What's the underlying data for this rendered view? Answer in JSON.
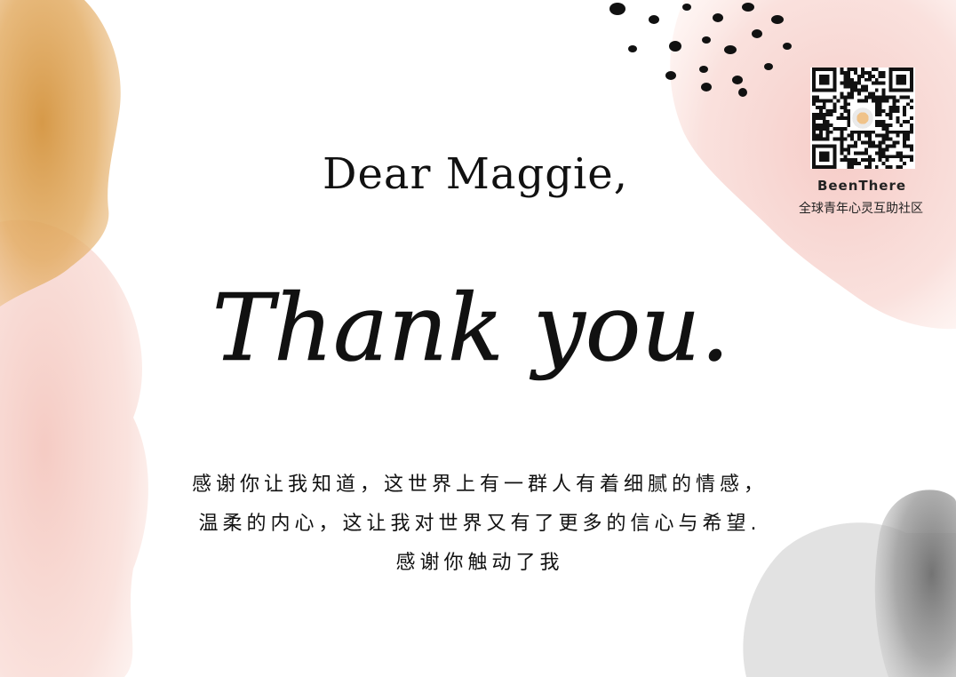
{
  "card": {
    "greeting": "Dear Maggie,",
    "headline": "Thank you.",
    "message_lines": [
      "感谢你让我知道，这世界上有一群人有着细腻的情感，",
      "温柔的内心，这让我对世界又有了更多的信心与希望.",
      "感谢你触动了我"
    ]
  },
  "brand": {
    "name": "BeenThere",
    "tagline": "全球青年心灵互助社区"
  },
  "icons": {
    "qr": "qr-code-icon",
    "dots": "dot-pattern-icon"
  },
  "colors": {
    "ochre_wash": "#e0a85c",
    "pink_wash": "#f6cfc8",
    "gray_wash": "#8c8c8c",
    "ink": "#111111"
  }
}
